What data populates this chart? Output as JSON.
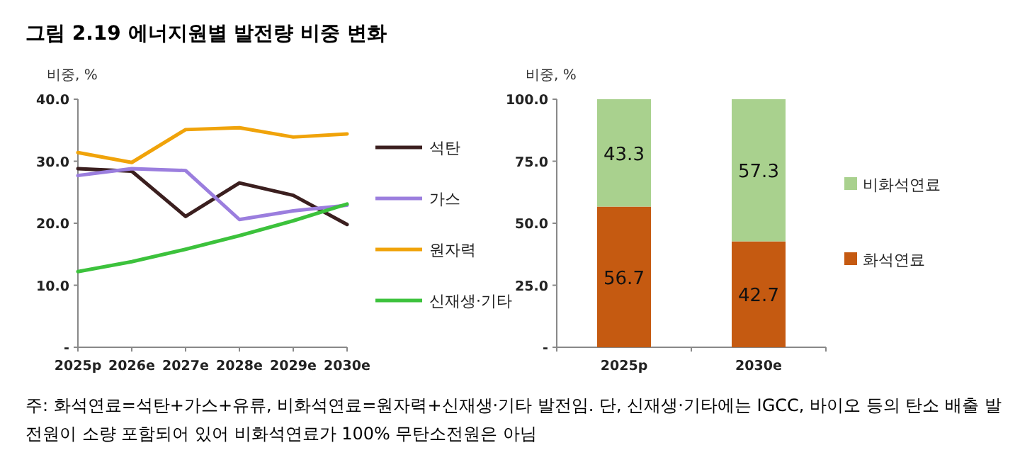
{
  "chart_data": [
    {
      "type": "line",
      "title": "그림 2.19 에너지원별 발전량 비중 변화",
      "ylabel": "비중, %",
      "categories": [
        "2025p",
        "2026e",
        "2027e",
        "2028e",
        "2029e",
        "2030e"
      ],
      "series": [
        {
          "name": "석탄",
          "color": "#3b1f1f",
          "values": [
            28.8,
            28.4,
            21.1,
            26.5,
            24.5,
            19.8
          ]
        },
        {
          "name": "가스",
          "color": "#9b7ede",
          "values": [
            27.7,
            28.8,
            28.5,
            20.6,
            22.0,
            22.9
          ]
        },
        {
          "name": "원자력",
          "color": "#f0a30a",
          "values": [
            31.4,
            29.8,
            35.1,
            35.4,
            33.9,
            34.4
          ]
        },
        {
          "name": "신재생·기타",
          "color": "#3cc23c",
          "values": [
            12.2,
            13.8,
            15.8,
            18.0,
            20.4,
            23.1
          ]
        }
      ],
      "ylim": [
        0,
        40
      ],
      "yticks": [
        {
          "value": 0,
          "label": "-"
        },
        {
          "value": 10,
          "label": "10.0"
        },
        {
          "value": 20,
          "label": "20.0"
        },
        {
          "value": 30,
          "label": "30.0"
        },
        {
          "value": 40,
          "label": "40.0"
        }
      ],
      "legend": "right",
      "marker": "none",
      "annotations": [
        "주: 화석연료=석탄+가스+유류, 비화석연료=원자력+신재생·기타 발전임. 단, 신재생·기타에는 IGCC, 바이오 등의 탄소 배출 발전원이 소량 포함되어 있어 비화석연료가 100% 무탄소전원은 아님"
      ]
    },
    {
      "type": "bar",
      "ylabel": "비중, %",
      "stacked": true,
      "data_labels": true,
      "categories": [
        "2025p",
        "2030e"
      ],
      "series": [
        {
          "name": "화석연료",
          "color": "#c55a11",
          "values": [
            56.7,
            42.7
          ]
        },
        {
          "name": "비화석연료",
          "color": "#a9d18e",
          "values": [
            43.3,
            57.3
          ]
        }
      ],
      "ylim": [
        0,
        100
      ],
      "yticks": [
        {
          "value": 0,
          "label": "-"
        },
        {
          "value": 25,
          "label": "25.0"
        },
        {
          "value": 50,
          "label": "50.0"
        },
        {
          "value": 75,
          "label": "75.0"
        },
        {
          "value": 100,
          "label": "100.0"
        }
      ],
      "legend": "right"
    }
  ]
}
